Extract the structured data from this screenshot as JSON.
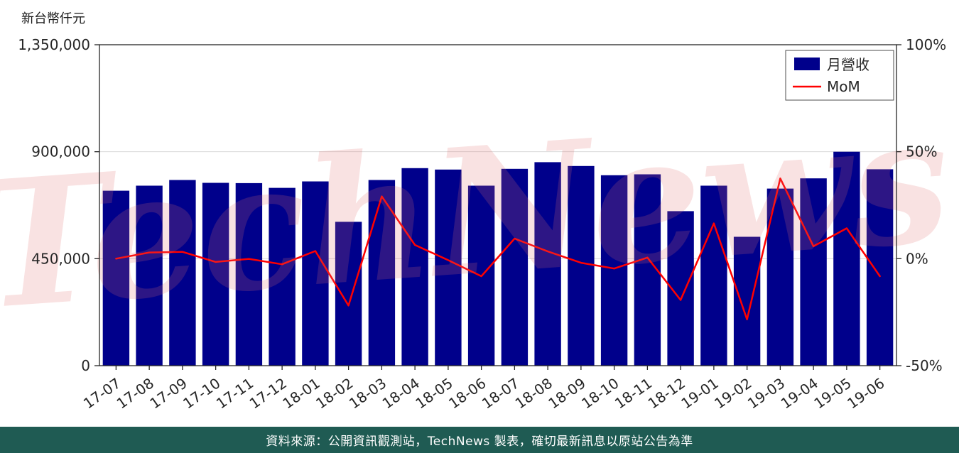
{
  "chart_data": {
    "type": "bar",
    "title": "",
    "categories": [
      "17-07",
      "17-08",
      "17-09",
      "17-10",
      "17-11",
      "17-12",
      "18-01",
      "18-02",
      "18-03",
      "18-04",
      "18-05",
      "18-06",
      "18-07",
      "18-08",
      "18-09",
      "18-10",
      "18-11",
      "18-12",
      "19-01",
      "19-02",
      "19-03",
      "19-04",
      "19-05",
      "19-06"
    ],
    "series": [
      {
        "name": "月營收",
        "type": "bar",
        "axis": "left",
        "color": "#00008B",
        "values": [
          736000,
          757000,
          781000,
          769000,
          768000,
          748000,
          775000,
          605000,
          781000,
          831000,
          825000,
          757000,
          828000,
          856000,
          840000,
          801000,
          805000,
          650000,
          757000,
          542000,
          745000,
          788000,
          900000,
          826000
        ]
      },
      {
        "name": "MoM",
        "type": "line",
        "axis": "right",
        "color": "#FF0000",
        "values": [
          0.0,
          2.9,
          3.2,
          -1.5,
          -0.1,
          -2.6,
          3.6,
          -21.9,
          29.1,
          6.4,
          -0.7,
          -8.2,
          9.4,
          3.4,
          -1.9,
          -4.6,
          0.5,
          -19.3,
          16.5,
          -28.4,
          37.5,
          5.8,
          14.2,
          -8.2
        ]
      }
    ],
    "left_axis": {
      "unit_label": "新台幣仟元",
      "min": 0,
      "max": 1350000,
      "ticks": [
        {
          "value": 0,
          "label": "0"
        },
        {
          "value": 450000,
          "label": "450,000"
        },
        {
          "value": 900000,
          "label": "900,000"
        },
        {
          "value": 1350000,
          "label": "1,350,000"
        }
      ]
    },
    "right_axis": {
      "min": -50,
      "max": 100,
      "ticks": [
        {
          "value": -50,
          "label": "-50%"
        },
        {
          "value": 0,
          "label": "0%"
        },
        {
          "value": 50,
          "label": "50%"
        },
        {
          "value": 100,
          "label": "100%"
        }
      ]
    },
    "legend": {
      "position": "top-right",
      "entries": [
        {
          "label": "月營收",
          "swatch": "bar",
          "color": "#00008B"
        },
        {
          "label": "MoM",
          "swatch": "line",
          "color": "#FF0000"
        }
      ]
    },
    "watermark": "TechNews",
    "grid": true
  },
  "colors": {
    "bar": "#00008B",
    "line": "#FF0000",
    "grid": "#D9D9D9",
    "axis": "#262626",
    "watermark": "rgba(226,110,110,0.20)",
    "footer_background": "#1F5B53"
  },
  "footer": {
    "text": "資料來源：公開資訊觀測站，TechNews 製表，確切最新訊息以原站公告為準"
  }
}
